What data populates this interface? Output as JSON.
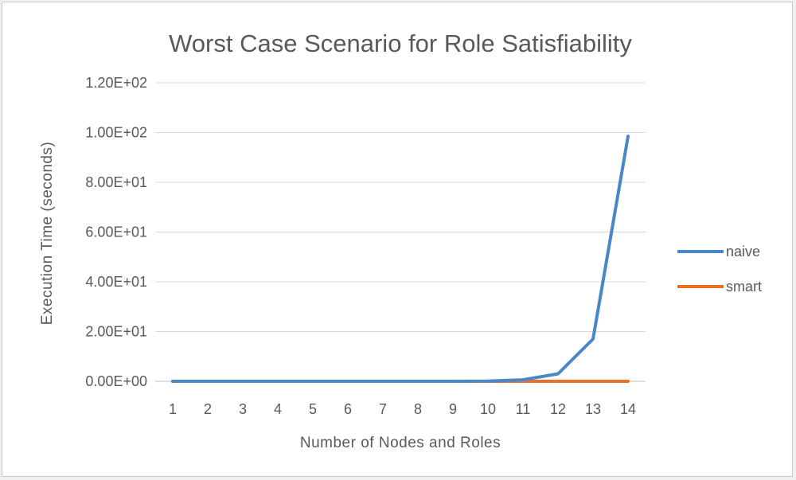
{
  "chart_data": {
    "type": "line",
    "title": "Worst Case Scenario for Role Satisfiability",
    "xlabel": "Number of Nodes and Roles",
    "ylabel": "Execution Time (seconds)",
    "categories": [
      "1",
      "2",
      "3",
      "4",
      "5",
      "6",
      "7",
      "8",
      "9",
      "10",
      "11",
      "12",
      "13",
      "14"
    ],
    "y_ticks": [
      "0.00E+00",
      "2.00E+01",
      "4.00E+01",
      "6.00E+01",
      "8.00E+01",
      "1.00E+02",
      "1.20E+02"
    ],
    "ylim": [
      0,
      120
    ],
    "grid": true,
    "legend_position": "right",
    "series": [
      {
        "name": "naive",
        "color": "#4a86c8",
        "values": [
          0,
          0,
          0,
          0,
          0,
          0,
          0,
          0,
          0,
          0.1,
          0.6,
          3.0,
          17.0,
          98.5
        ]
      },
      {
        "name": "smart",
        "color": "#e8712a",
        "values": [
          0,
          0,
          0,
          0,
          0,
          0,
          0,
          0,
          0,
          0,
          0,
          0,
          0,
          0
        ]
      }
    ]
  }
}
